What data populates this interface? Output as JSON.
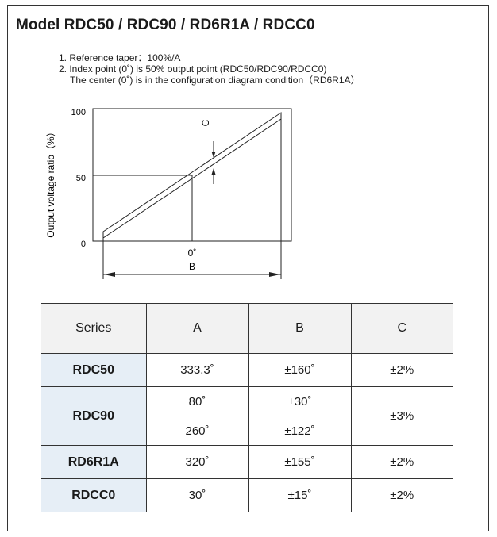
{
  "title": "Model RDC50 / RDC90 / RD6R1A / RDCC0",
  "notes": [
    "1. Reference taper：100%/A",
    "2. Index point (0˚) is 50% output point (RDC50/RDC90/RDCC0)",
    "The center (0˚) is in the configuration diagram condition（RD6R1A）"
  ],
  "diagram": {
    "y_axis_label": "Output voltage ratio（%）",
    "y_ticks": [
      "100",
      "50",
      "0"
    ],
    "x_center_label": "0˚",
    "b_label": "B",
    "c_label": "C"
  },
  "table": {
    "headers": [
      "Series",
      "A",
      "B",
      "C"
    ],
    "rows": [
      {
        "series": "RDC50",
        "a": "333.3˚",
        "b": "±160˚",
        "c": "±2%"
      },
      {
        "series": "RDC90",
        "a": "80˚",
        "b": "±30˚",
        "c": "±3%"
      },
      {
        "a": "260˚",
        "b": "±122˚"
      },
      {
        "series": "RD6R1A",
        "a": "320˚",
        "b": "±155˚",
        "c": "±2%"
      },
      {
        "series": "RDCC0",
        "a": "30˚",
        "b": "±15˚",
        "c": "±2%"
      }
    ]
  }
}
